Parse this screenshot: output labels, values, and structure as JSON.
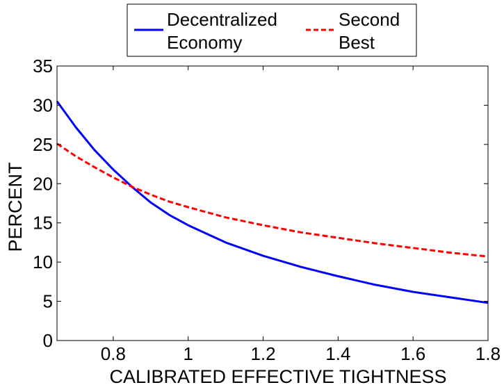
{
  "chart_data": {
    "type": "line",
    "title": "",
    "xlabel": "CALIBRATED EFFECTIVE TIGHTNESS",
    "ylabel": "PERCENT",
    "xlim": [
      0.65,
      1.8
    ],
    "ylim": [
      0,
      35
    ],
    "xticks": [
      0.8,
      1,
      1.2,
      1.4,
      1.6,
      1.8
    ],
    "xtick_labels": [
      "0.8",
      "1",
      "1.2",
      "1.4",
      "1.6",
      "1.8"
    ],
    "yticks": [
      0,
      5,
      10,
      15,
      20,
      25,
      30,
      35
    ],
    "ytick_labels": [
      "0",
      "5",
      "10",
      "15",
      "20",
      "25",
      "30",
      "35"
    ],
    "grid": false,
    "legend_position": "top-center, outside plot",
    "series": [
      {
        "name_lines": [
          "Decentralized",
          "Economy"
        ],
        "color": "#0000ff",
        "style": "solid",
        "x": [
          0.65,
          0.7,
          0.75,
          0.8,
          0.85,
          0.9,
          0.95,
          1.0,
          1.1,
          1.2,
          1.3,
          1.4,
          1.5,
          1.6,
          1.7,
          1.8
        ],
        "y": [
          30.5,
          27.2,
          24.3,
          21.8,
          19.6,
          17.6,
          16.0,
          14.7,
          12.5,
          10.8,
          9.4,
          8.2,
          7.1,
          6.2,
          5.5,
          4.8
        ]
      },
      {
        "name_lines": [
          "Second",
          "Best"
        ],
        "color": "#ff0000",
        "style": "dashed",
        "x": [
          0.65,
          0.7,
          0.75,
          0.8,
          0.85,
          0.9,
          0.95,
          1.0,
          1.1,
          1.2,
          1.3,
          1.4,
          1.5,
          1.6,
          1.7,
          1.8
        ],
        "y": [
          25.1,
          23.5,
          22.1,
          20.8,
          19.6,
          18.6,
          17.7,
          17.0,
          15.7,
          14.7,
          13.8,
          13.1,
          12.4,
          11.8,
          11.2,
          10.7
        ]
      }
    ]
  }
}
